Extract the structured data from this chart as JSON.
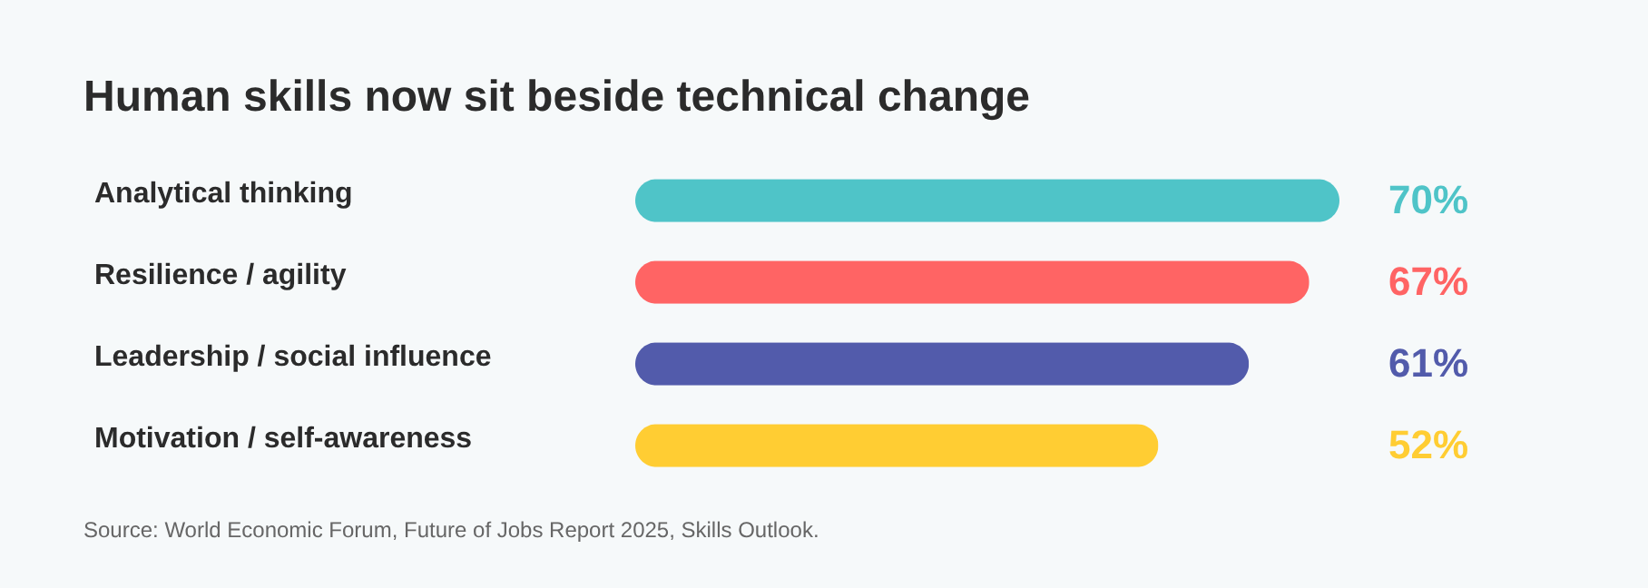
{
  "chart_data": {
    "type": "bar",
    "orientation": "horizontal",
    "title": "Human skills now sit beside technical change",
    "categories": [
      "Analytical thinking",
      "Resilience / agility",
      "Leadership / social influence",
      "Motivation / self-awareness"
    ],
    "values": [
      70,
      67,
      61,
      52
    ],
    "colors": [
      "#4fc4c8",
      "#ff6464",
      "#525bab",
      "#ffcd33"
    ],
    "value_labels": [
      "70%",
      "67%",
      "61%",
      "52%"
    ],
    "annotations": [
      "Source: World Economic Forum, Future of Jobs Report 2025, Skills Outlook."
    ]
  }
}
